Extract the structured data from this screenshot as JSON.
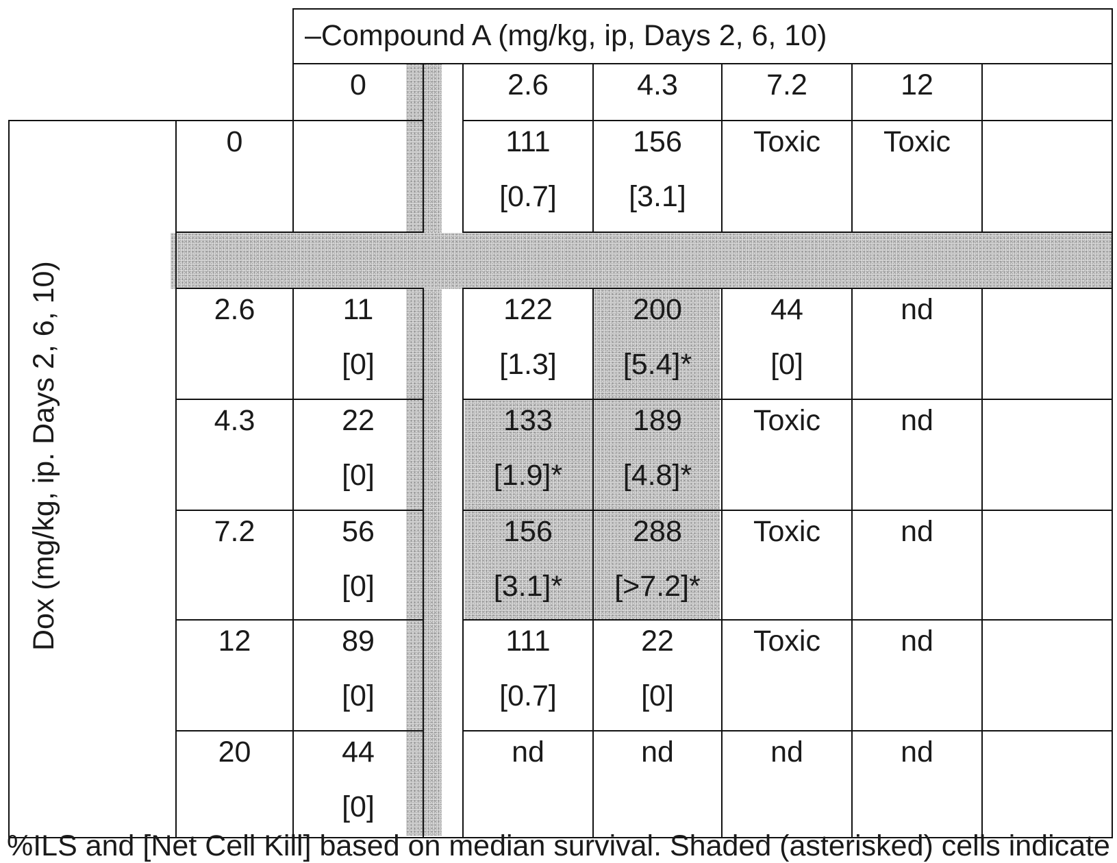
{
  "table": {
    "column_header": "–Compound A (mg/kg, ip, Days 2, 6, 10)",
    "row_header": "Dox (mg/kg, ip. Days 2, 6, 10)",
    "column_values": [
      "0",
      "2.6",
      "4.3",
      "7.2",
      "12",
      ""
    ],
    "rows": [
      {
        "dox": "0",
        "cells": [
          {
            "value": "",
            "note": ""
          },
          {
            "value": "111",
            "note": "[0.7]"
          },
          {
            "value": "156",
            "note": "[3.1]"
          },
          {
            "value": "Toxic",
            "note": ""
          },
          {
            "value": "Toxic",
            "note": ""
          },
          {
            "value": "",
            "note": ""
          }
        ]
      },
      {
        "dox": "2.6",
        "cells": [
          {
            "value": "11",
            "note": "[0]"
          },
          {
            "value": "122",
            "note": "[1.3]"
          },
          {
            "value": "200",
            "note": "[5.4]*"
          },
          {
            "value": "44",
            "note": "[0]"
          },
          {
            "value": "nd",
            "note": ""
          },
          {
            "value": "",
            "note": ""
          }
        ]
      },
      {
        "dox": "4.3",
        "cells": [
          {
            "value": "22",
            "note": "[0]"
          },
          {
            "value": "133",
            "note": "[1.9]*"
          },
          {
            "value": "189",
            "note": "[4.8]*"
          },
          {
            "value": "Toxic",
            "note": ""
          },
          {
            "value": "nd",
            "note": ""
          },
          {
            "value": "",
            "note": ""
          }
        ]
      },
      {
        "dox": "7.2",
        "cells": [
          {
            "value": "56",
            "note": "[0]"
          },
          {
            "value": "156",
            "note": "[3.1]*"
          },
          {
            "value": "288",
            "note": "[>7.2]*"
          },
          {
            "value": "Toxic",
            "note": ""
          },
          {
            "value": "nd",
            "note": ""
          },
          {
            "value": "",
            "note": ""
          }
        ]
      },
      {
        "dox": "12",
        "cells": [
          {
            "value": "89",
            "note": "[0]"
          },
          {
            "value": "111",
            "note": "[0.7]"
          },
          {
            "value": "22",
            "note": "[0]"
          },
          {
            "value": "Toxic",
            "note": ""
          },
          {
            "value": "nd",
            "note": ""
          },
          {
            "value": "",
            "note": ""
          }
        ]
      },
      {
        "dox": "20",
        "cells": [
          {
            "value": "44",
            "note": "[0]"
          },
          {
            "value": "nd",
            "note": ""
          },
          {
            "value": "nd",
            "note": ""
          },
          {
            "value": "nd",
            "note": ""
          },
          {
            "value": "nd",
            "note": ""
          },
          {
            "value": "",
            "note": ""
          }
        ]
      }
    ],
    "footnote": "%ILS and [Net Cell Kill] based on median survival. Shaded (asterisked) cells indicate"
  },
  "colors": {
    "grid": "#111111",
    "shade": "#d8d8d8",
    "text": "#1a1a1a"
  }
}
